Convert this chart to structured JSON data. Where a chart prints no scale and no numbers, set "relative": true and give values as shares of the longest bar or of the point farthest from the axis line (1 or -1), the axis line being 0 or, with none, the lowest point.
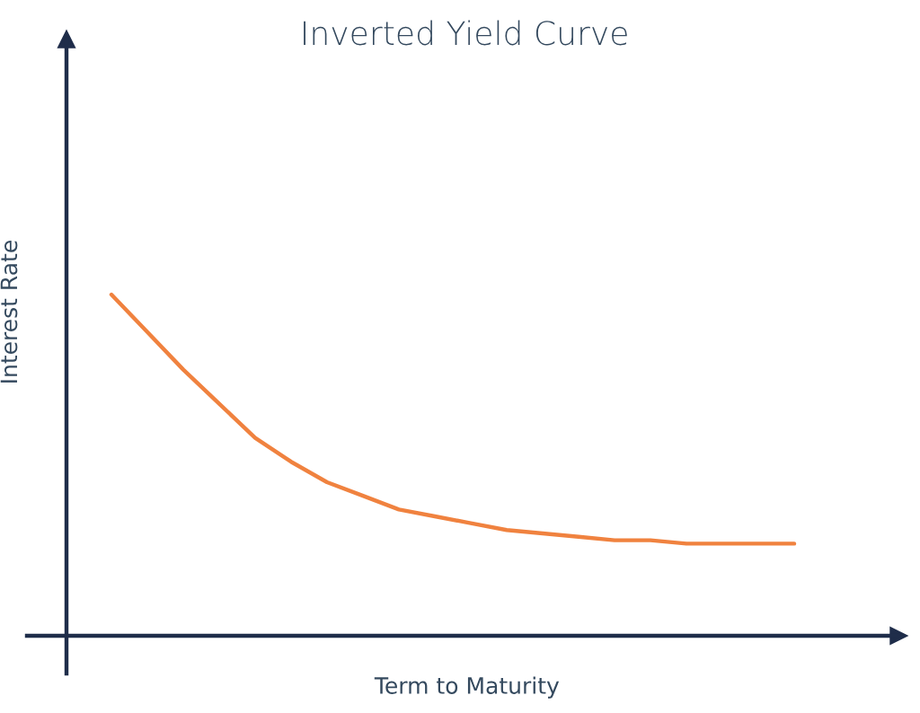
{
  "chart_data": {
    "type": "line",
    "title": "Inverted Yield Curve",
    "xlabel": "Term to Maturity",
    "ylabel": "Interest Rate",
    "relative": true,
    "grid": false,
    "legend": false,
    "marker": "none",
    "line_style": "solid",
    "categories": [
      null,
      null,
      null,
      null,
      null,
      null,
      null,
      null,
      null,
      null,
      null,
      null,
      null,
      null,
      null,
      null,
      null,
      null,
      null,
      null
    ],
    "series": [
      {
        "color": "#f0823f",
        "values": [
          1.0,
          0.89,
          0.78,
          0.68,
          0.58,
          0.51,
          0.45,
          0.41,
          0.37,
          0.35,
          0.33,
          0.31,
          0.3,
          0.29,
          0.28,
          0.28,
          0.27,
          0.27,
          0.27,
          0.27
        ]
      }
    ]
  }
}
